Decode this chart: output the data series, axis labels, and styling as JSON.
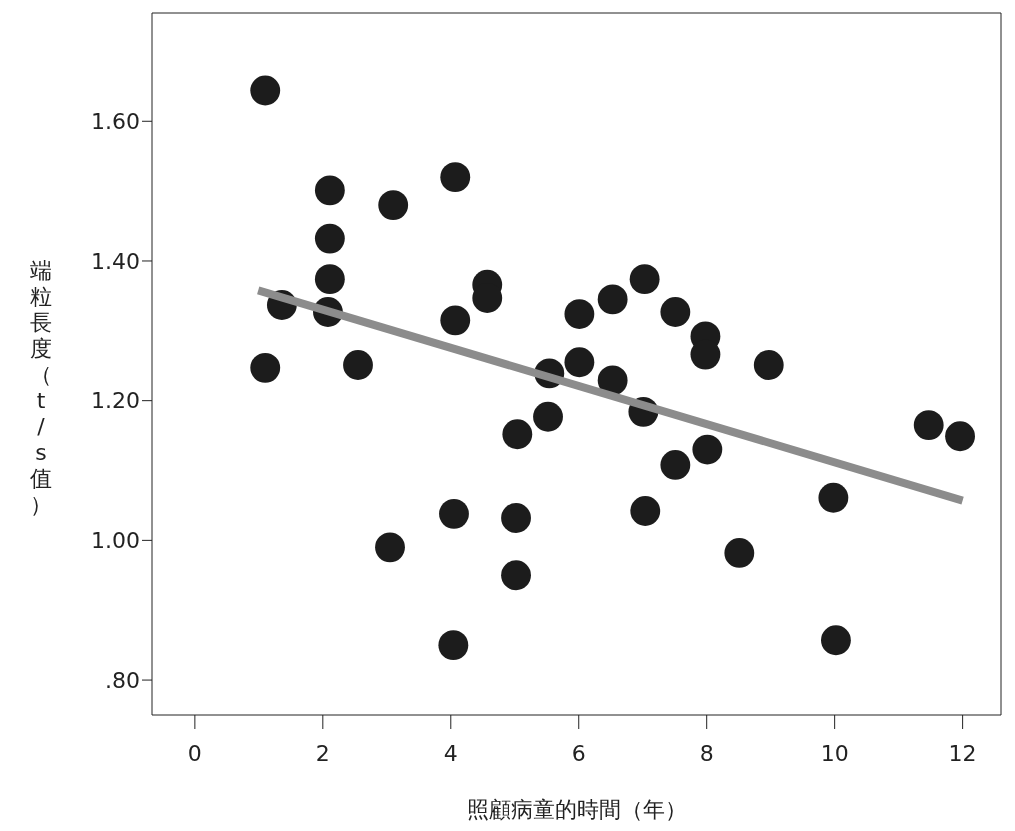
{
  "chart_data": {
    "type": "scatter",
    "xlabel": "照顧病童的時間（年）",
    "ylabel": "端粒長度（t/s值）",
    "xlim": [
      -0.67,
      12.6
    ],
    "xticks": [
      0,
      2,
      4,
      6,
      8,
      10,
      12
    ],
    "ylim": [
      0.75,
      1.755
    ],
    "yticks": [
      {
        "value": 0.8,
        "label": ".80"
      },
      {
        "value": 1.0,
        "label": "1.00"
      },
      {
        "value": 1.2,
        "label": "1.20"
      },
      {
        "value": 1.4,
        "label": "1.40"
      },
      {
        "value": 1.6,
        "label": "1.60"
      }
    ],
    "series": [
      {
        "marker": "circle",
        "color": "#1c1c1c",
        "x": [
          1.1,
          1.1,
          1.36,
          2.11,
          2.11,
          2.11,
          2.08,
          2.55,
          3.1,
          3.05,
          4.07,
          4.07,
          4.05,
          4.04,
          4.57,
          4.57,
          5.04,
          5.02,
          5.02,
          5.54,
          5.52,
          6.01,
          6.01,
          6.53,
          6.53,
          7.03,
          7.01,
          7.04,
          7.51,
          7.51,
          7.98,
          7.98,
          8.01,
          8.51,
          8.97,
          9.98,
          10.02,
          11.47,
          11.96
        ],
        "values": [
          1.644,
          1.247,
          1.337,
          1.501,
          1.432,
          1.374,
          1.327,
          1.251,
          1.48,
          0.99,
          1.52,
          1.315,
          1.038,
          0.85,
          1.366,
          1.347,
          1.152,
          1.032,
          0.95,
          1.239,
          1.177,
          1.324,
          1.255,
          1.345,
          1.229,
          1.374,
          1.184,
          1.042,
          1.327,
          1.108,
          1.292,
          1.266,
          1.13,
          0.982,
          1.251,
          1.061,
          0.857,
          1.165,
          1.149
        ]
      },
      {
        "type": "line",
        "color": "#8c8c8c",
        "x": [
          0.99,
          12.0
        ],
        "values": [
          1.358,
          1.057
        ]
      }
    ]
  }
}
